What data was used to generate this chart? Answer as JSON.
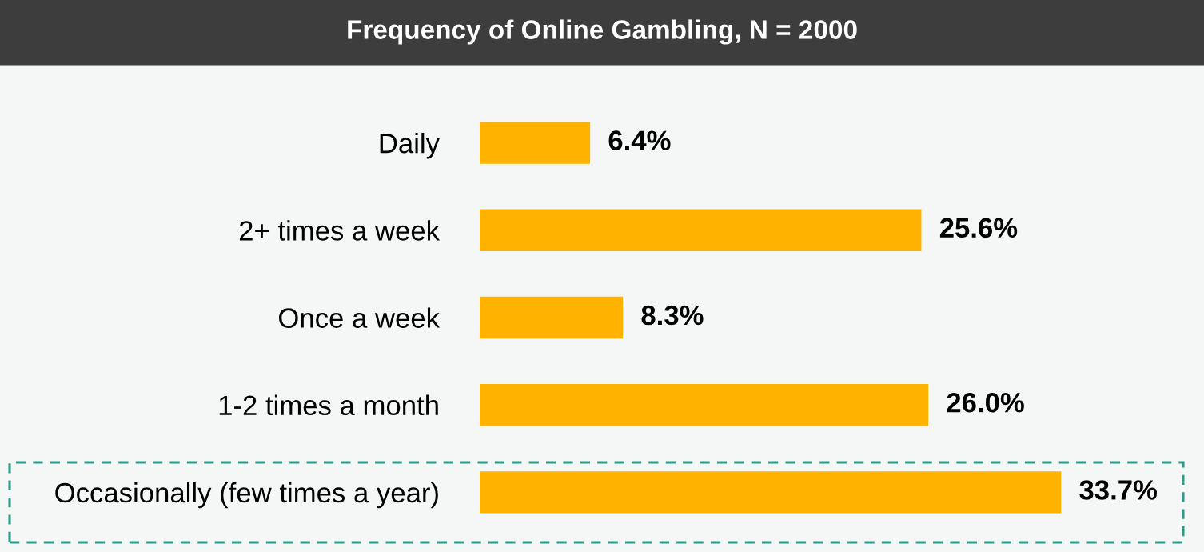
{
  "chart_data": {
    "type": "bar",
    "orientation": "horizontal",
    "title": "Frequency of Online Gambling, N = 2000",
    "categories": [
      "Daily",
      "2+ times a week",
      "Once a week",
      "1-2 times a month",
      "Occasionally (few times a year)"
    ],
    "values": [
      6.4,
      25.6,
      8.3,
      26.0,
      33.7
    ],
    "value_labels": [
      "6.4%",
      "25.6%",
      "8.3%",
      "26.0%",
      "33.7%"
    ],
    "color": "#ffb300",
    "tick_labels": "y",
    "grid": false,
    "legend": false
  }
}
